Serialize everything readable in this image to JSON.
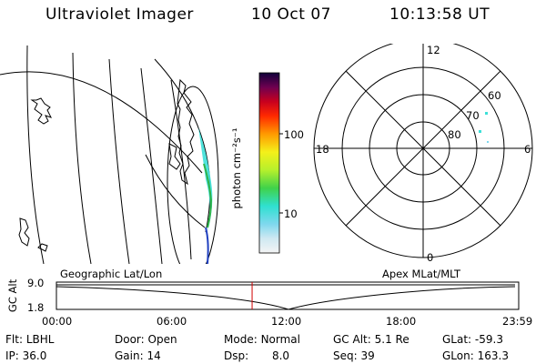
{
  "header": {
    "instrument": "Ultraviolet Imager",
    "date": "10 Oct 07",
    "time": "10:13:58 UT"
  },
  "colorbar": {
    "unit_label": "photon cm⁻²s⁻¹",
    "ticks": [
      "100",
      "10"
    ]
  },
  "polar_plot": {
    "mlt_labels": [
      "12",
      "18",
      "6",
      "0"
    ],
    "lat_labels": [
      "60",
      "70",
      "80"
    ]
  },
  "orbit_panel": {
    "left_label": "Geographic Lat/Lon",
    "right_label": "Apex MLat/MLT",
    "axis_label": "GC Alt",
    "y_ticks": [
      "9.0",
      "1.8"
    ],
    "x_ticks": [
      "00:00",
      "06:00",
      "12:00",
      "18:00",
      "23:59"
    ],
    "cursor_time": "10:13:58"
  },
  "info": {
    "filter_label": "Flt:",
    "filter_value": "LBHL",
    "ip_label": "IP:",
    "ip_value": "36.0",
    "door_label": "Door:",
    "door_value": "Open",
    "gain_label": "Gain:",
    "gain_value": "14",
    "mode_label": "Mode:",
    "mode_value": "Normal",
    "dsp_label": "Dsp:",
    "dsp_value": "8.0",
    "gcalt_label": "GC Alt:",
    "gcalt_value": "5.1 Re",
    "seq_label": "Seq:",
    "seq_value": "39",
    "glat_label": "GLat:",
    "glat_value": "-59.3",
    "glon_label": "GLon:",
    "glon_value": "163.3"
  }
}
